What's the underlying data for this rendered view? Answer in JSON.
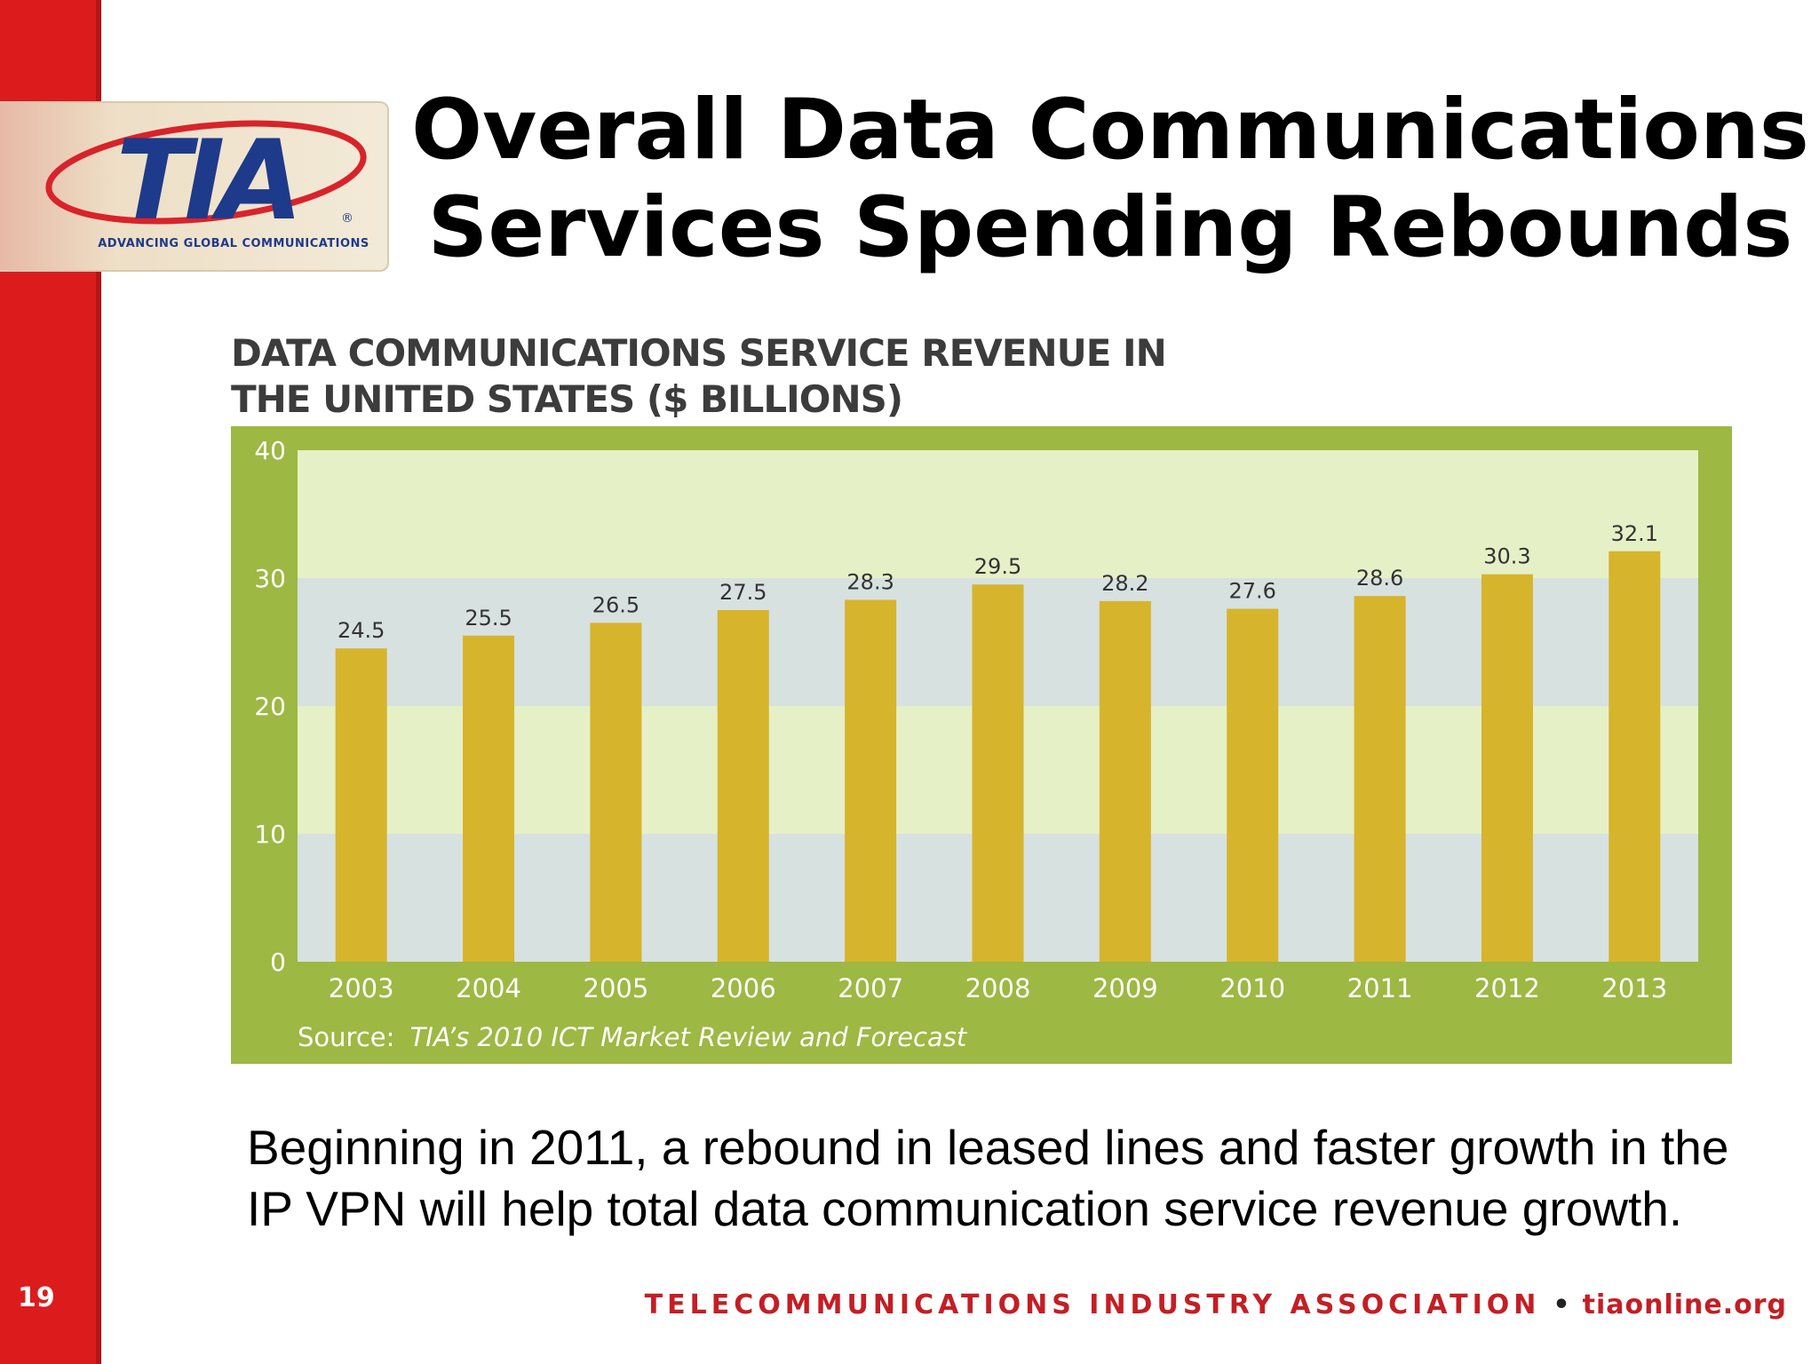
{
  "slide": {
    "title_line1": "Overall Data Communications",
    "title_line2": "Services Spending Rebounds",
    "number": "19",
    "body_text": "Beginning in 2011, a rebound in leased lines and faster growth in the IP VPN will help total data communication service revenue growth.",
    "footer_org": "TELECOMMUNICATIONS INDUSTRY ASSOCIATION",
    "footer_separator": "•",
    "footer_url": "tiaonline.org"
  },
  "logo": {
    "text": "TIA",
    "registered": "®",
    "tagline": "ADVANCING GLOBAL COMMUNICATIONS",
    "colors": {
      "letters": "#1e3a8a",
      "swoosh": "#d8232a"
    }
  },
  "chart_data": {
    "type": "bar",
    "title_line1": "DATA COMMUNICATIONS SERVICE REVENUE IN",
    "title_line2": "THE UNITED STATES ($ BILLIONS)",
    "categories": [
      "2003",
      "2004",
      "2005",
      "2006",
      "2007",
      "2008",
      "2009",
      "2010",
      "2011",
      "2012",
      "2013"
    ],
    "values": [
      24.5,
      25.5,
      26.5,
      27.5,
      28.3,
      29.5,
      28.2,
      27.6,
      28.6,
      30.3,
      32.1
    ],
    "value_labels": [
      "24.5",
      "25.5",
      "26.5",
      "27.5",
      "28.3",
      "29.5",
      "28.2",
      "27.6",
      "28.6",
      "30.3",
      "32.1"
    ],
    "ylim": [
      0,
      40
    ],
    "yticks": [
      "0",
      "10",
      "20",
      "30",
      "40"
    ],
    "grid": "alternating horizontal bands",
    "source_label": "Source:",
    "source_text": "TIA’s 2010 ICT Market Review and Forecast",
    "colors": {
      "frame": "#9db843",
      "bar": "#d6b42c",
      "band_light": "#e6f0c6",
      "band_grey": "#d7e1e0",
      "tick_text": "#ffffff",
      "value_text": "#333333"
    }
  }
}
